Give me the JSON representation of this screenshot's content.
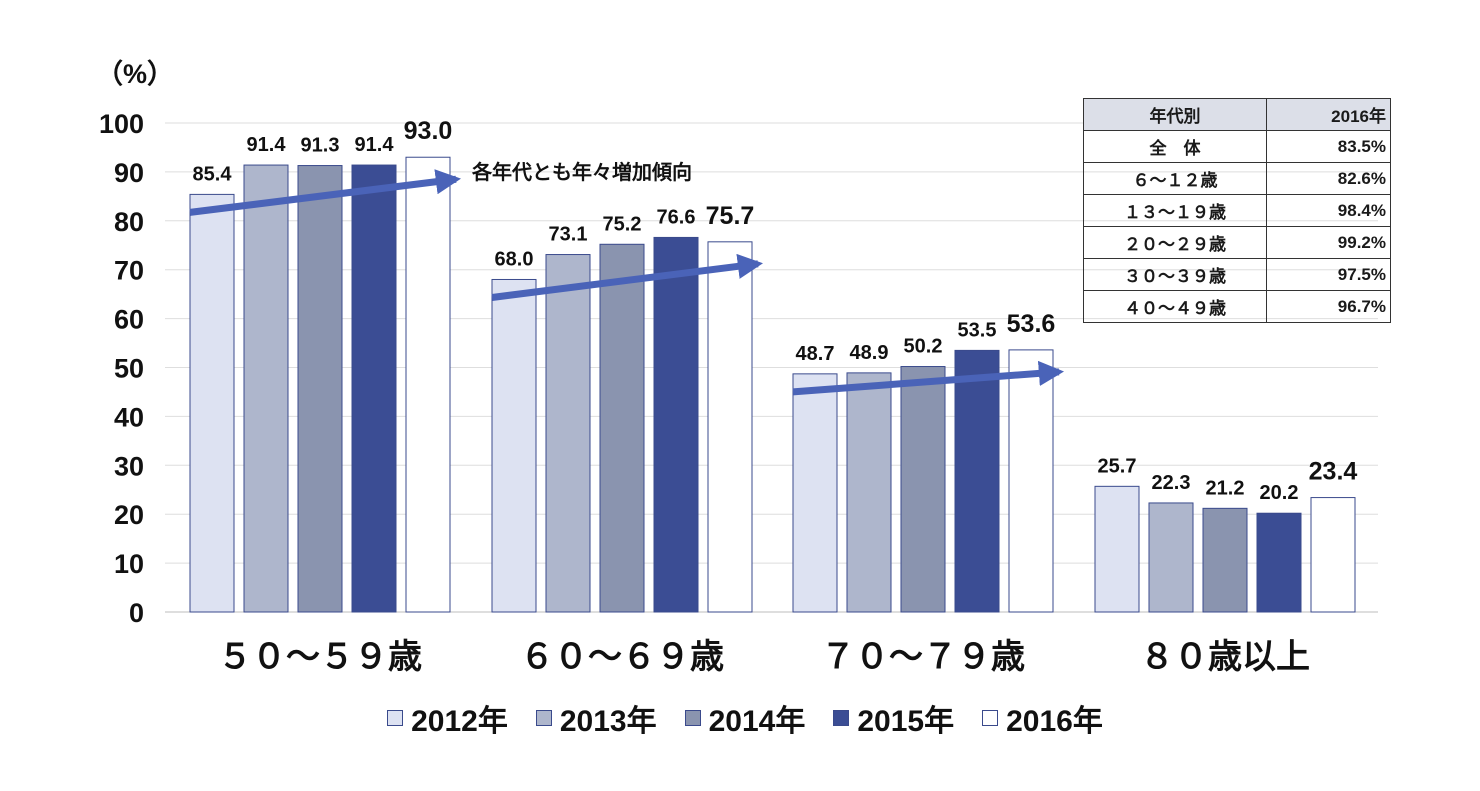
{
  "chart_data": {
    "type": "bar",
    "unit_label": "（%）",
    "categories": [
      "５０～５９歳",
      "６０～６９歳",
      "７０～７９歳",
      "８０歳以上"
    ],
    "series": [
      {
        "name": "2012年",
        "color": "#dde2f2",
        "values": [
          85.4,
          68.0,
          48.7,
          25.7
        ]
      },
      {
        "name": "2013年",
        "color": "#aeb6cc",
        "values": [
          91.4,
          73.1,
          48.9,
          22.3
        ]
      },
      {
        "name": "2014年",
        "color": "#8a94af",
        "values": [
          91.3,
          75.2,
          50.2,
          21.2
        ]
      },
      {
        "name": "2015年",
        "color": "#3b4d94",
        "values": [
          91.4,
          76.6,
          53.5,
          20.2
        ]
      },
      {
        "name": "2016年",
        "color": "#ffffff",
        "values": [
          93.0,
          75.7,
          53.6,
          23.4
        ]
      }
    ],
    "data_labels": [
      [
        "85.4",
        "68.0",
        "48.7",
        "25.7"
      ],
      [
        "91.4",
        "73.1",
        "48.9",
        "22.3"
      ],
      [
        "91.3",
        "75.2",
        "50.2",
        "21.2"
      ],
      [
        "91.4",
        "76.6",
        "53.5",
        "20.2"
      ],
      [
        "93.0",
        "75.7",
        "53.6",
        "23.4"
      ]
    ],
    "ylim": [
      0,
      100
    ],
    "yticks": [
      0,
      10,
      20,
      30,
      40,
      50,
      60,
      70,
      80,
      90,
      100
    ],
    "grid": true,
    "legend_position": "bottom",
    "annotation": "各年代とも年々増加傾向",
    "arrow_color": "#4a63b8"
  },
  "summary_table": {
    "headers": [
      "年代別",
      "2016年"
    ],
    "rows": [
      [
        "全　体",
        "83.5%"
      ],
      [
        "６～１２歳",
        "82.6%"
      ],
      [
        "１３～１９歳",
        "98.4%"
      ],
      [
        "２０～２９歳",
        "99.2%"
      ],
      [
        "３０～３９歳",
        "97.5%"
      ],
      [
        "４０～４９歳",
        "96.7%"
      ]
    ]
  }
}
